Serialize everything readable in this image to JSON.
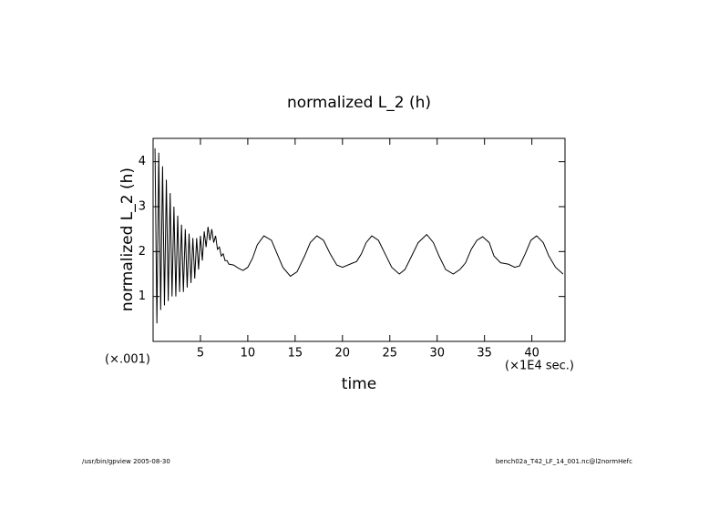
{
  "chart_data": {
    "type": "line",
    "title": "normalized L_2 (h)",
    "x_label": "time",
    "y_label": "normalized L_2 (h)",
    "x_unit_label": "(×1E4 sec.)",
    "y_unit_label": "(×.001)",
    "footer_left": "/usr/bin/gpview  2005-08-30",
    "footer_right": "bench02a_T42_LF_14_001.nc@l2normHefc",
    "color": "#000000",
    "x": [
      0.2,
      0.4,
      0.6,
      0.8,
      1.0,
      1.2,
      1.4,
      1.6,
      1.8,
      2.0,
      2.2,
      2.4,
      2.6,
      2.8,
      3.0,
      3.2,
      3.4,
      3.6,
      3.8,
      4.0,
      4.2,
      4.4,
      4.6,
      4.8,
      5.0,
      5.2,
      5.4,
      5.6,
      5.8,
      6.0,
      6.2,
      6.4,
      6.6,
      6.8,
      7.0,
      7.2,
      7.4,
      7.6,
      7.8,
      8.0,
      8.5,
      9.0,
      9.5,
      10.0,
      10.5,
      11.0,
      11.7,
      12.5,
      13.0,
      13.7,
      14.5,
      15.2,
      16.0,
      16.6,
      17.3,
      18.0,
      18.7,
      19.4,
      20.0,
      20.8,
      21.5,
      22.0,
      22.5,
      23.1,
      23.8,
      24.5,
      25.2,
      26.0,
      26.6,
      27.3,
      28.0,
      28.9,
      29.6,
      30.2,
      30.9,
      31.7,
      32.4,
      33.0,
      33.6,
      34.2,
      34.8,
      35.5,
      36.0,
      36.7,
      37.5,
      38.2,
      38.7,
      39.3,
      39.9,
      40.5,
      41.2,
      41.8,
      42.5,
      43.3
    ],
    "values": [
      4.3,
      0.4,
      4.2,
      0.7,
      3.9,
      0.8,
      3.6,
      0.9,
      3.3,
      1.0,
      3.0,
      1.0,
      2.8,
      1.1,
      2.6,
      1.1,
      2.5,
      1.2,
      2.4,
      1.3,
      2.3,
      1.4,
      2.3,
      1.6,
      2.35,
      1.8,
      2.45,
      2.1,
      2.55,
      2.25,
      2.5,
      2.2,
      2.35,
      2.05,
      2.1,
      1.9,
      1.95,
      1.8,
      1.8,
      1.72,
      1.7,
      1.63,
      1.58,
      1.65,
      1.85,
      2.15,
      2.35,
      2.25,
      2.0,
      1.65,
      1.45,
      1.55,
      1.9,
      2.2,
      2.35,
      2.25,
      1.95,
      1.7,
      1.65,
      1.72,
      1.78,
      1.95,
      2.2,
      2.35,
      2.25,
      1.95,
      1.65,
      1.5,
      1.6,
      1.9,
      2.2,
      2.38,
      2.2,
      1.9,
      1.6,
      1.5,
      1.6,
      1.75,
      2.05,
      2.25,
      2.33,
      2.2,
      1.9,
      1.75,
      1.72,
      1.65,
      1.68,
      1.95,
      2.25,
      2.35,
      2.2,
      1.9,
      1.65,
      1.5
    ],
    "xlim": [
      0,
      43.5
    ],
    "ylim": [
      0,
      4.52
    ],
    "xticks": [
      5,
      10,
      15,
      20,
      25,
      30,
      35,
      40
    ],
    "yticks": [
      1,
      2,
      3,
      4
    ]
  }
}
